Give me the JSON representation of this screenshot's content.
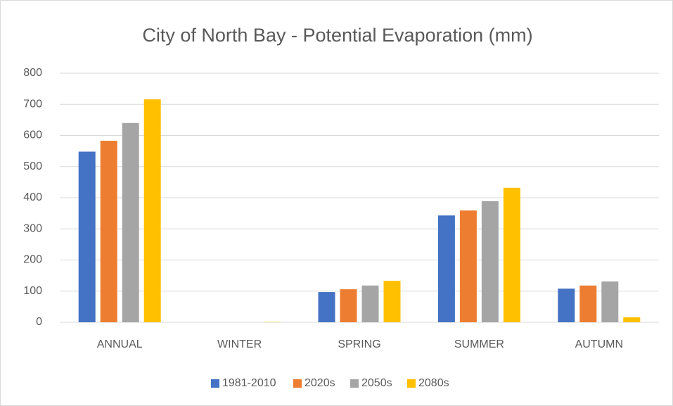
{
  "chart_data": {
    "type": "bar",
    "title": "City of North Bay - Potential Evaporation (mm)",
    "categories": [
      "ANNUAL",
      "WINTER",
      "SPRING",
      "SUMMER",
      "AUTUMN"
    ],
    "series": [
      {
        "name": "1981-2010",
        "color": "#4472c4",
        "values": [
          548,
          0,
          97,
          343,
          108
        ]
      },
      {
        "name": "2020s",
        "color": "#ed7d31",
        "values": [
          583,
          0,
          106,
          359,
          118
        ]
      },
      {
        "name": "2050s",
        "color": "#a5a5a5",
        "values": [
          640,
          0,
          118,
          389,
          131
        ]
      },
      {
        "name": "2080s",
        "color": "#ffc000",
        "values": [
          716,
          1,
          133,
          432,
          16
        ]
      }
    ],
    "ylim": [
      0,
      800
    ],
    "yticks": [
      0,
      100,
      200,
      300,
      400,
      500,
      600,
      700,
      800
    ],
    "grid": true,
    "legend": "bottom"
  }
}
